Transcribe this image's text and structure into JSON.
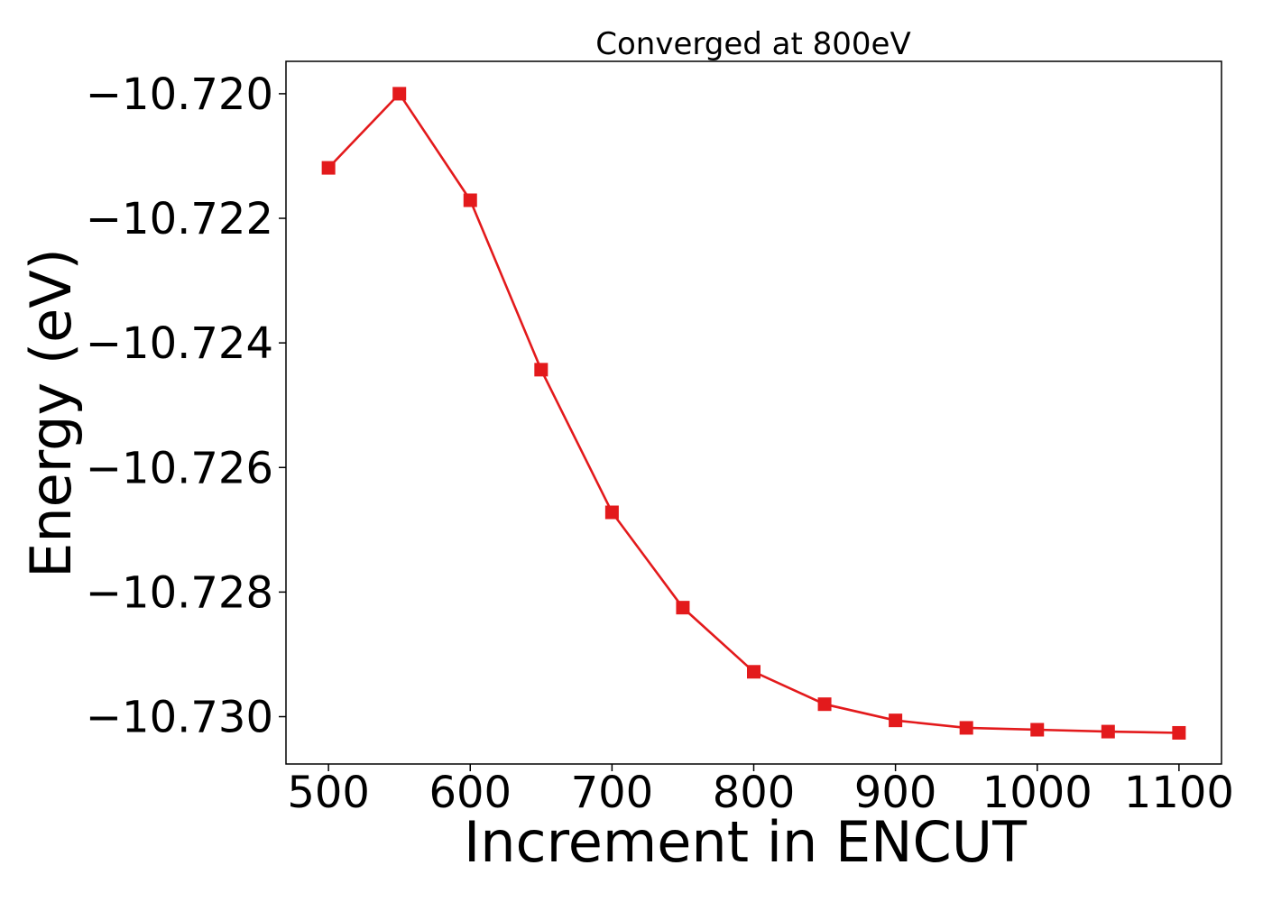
{
  "chart_data": {
    "type": "line",
    "title": "Converged at 800eV",
    "xlabel": "Increment in ENCUT",
    "ylabel": "Energy (eV)",
    "x": [
      500,
      550,
      600,
      650,
      700,
      750,
      800,
      850,
      900,
      950,
      1000,
      1050,
      1100
    ],
    "series": [
      {
        "values": [
          -10.72119,
          -10.72,
          -10.72171,
          -10.72443,
          -10.72672,
          -10.72825,
          -10.72928,
          -10.7298,
          -10.73006,
          -10.73018,
          -10.73021,
          -10.73024,
          -10.73026
        ],
        "color": "#e31a1c",
        "marker": "square"
      }
    ],
    "xlim": [
      470,
      1130
    ],
    "ylim": [
      -10.73076,
      -10.71948
    ],
    "xticks": [
      500,
      600,
      700,
      800,
      900,
      1000,
      1100
    ],
    "xtick_labels": [
      "500",
      "600",
      "700",
      "800",
      "900",
      "1000",
      "1100"
    ],
    "yticks": [
      -10.72,
      -10.722,
      -10.724,
      -10.726,
      -10.728,
      -10.73
    ],
    "ytick_labels": [
      "−10.720",
      "−10.722",
      "−10.724",
      "−10.726",
      "−10.728",
      "−10.730"
    ],
    "grid": false,
    "legend": "none"
  }
}
